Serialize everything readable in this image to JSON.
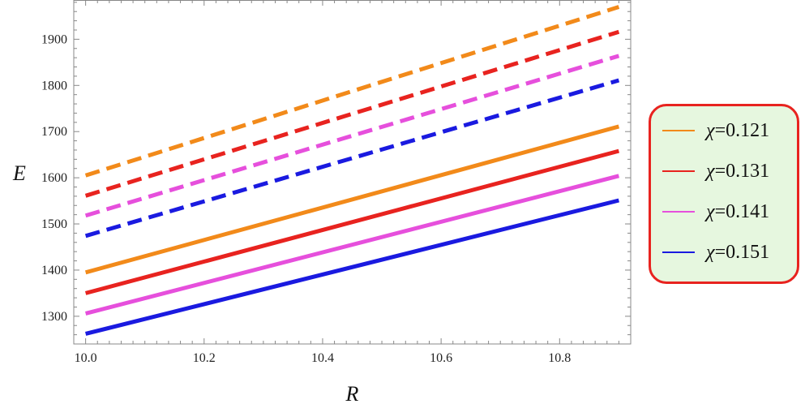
{
  "chart_data": {
    "type": "line",
    "title": "",
    "xlabel": "R",
    "ylabel": "E",
    "xlim": [
      9.98,
      10.92
    ],
    "ylim": [
      1240,
      1985
    ],
    "xticks": [
      10.0,
      10.2,
      10.4,
      10.6,
      10.8
    ],
    "xtick_labels": [
      "10.0",
      "10.2",
      "10.4",
      "10.6",
      "10.8"
    ],
    "yticks": [
      1300,
      1400,
      1500,
      1600,
      1700,
      1800,
      1900
    ],
    "ytick_labels": [
      "1300",
      "1400",
      "1500",
      "1600",
      "1700",
      "1800",
      "1900"
    ],
    "grid": false,
    "legend_position": "right",
    "legend": [
      {
        "symbol": "χ",
        "text": "=0.121",
        "color": "#f28a1a"
      },
      {
        "symbol": "χ",
        "text": "=0.131",
        "color": "#e8231f"
      },
      {
        "symbol": "χ",
        "text": "=0.141",
        "color": "#e64fdc"
      },
      {
        "symbol": "χ",
        "text": "=0.151",
        "color": "#1a1ae0"
      }
    ],
    "series": [
      {
        "chi": 0.121,
        "style": "dashed",
        "color": "#f28a1a",
        "x": [
          10.0,
          10.9
        ],
        "y": [
          1605,
          1970
        ]
      },
      {
        "chi": 0.131,
        "style": "dashed",
        "color": "#e8231f",
        "x": [
          10.0,
          10.9
        ],
        "y": [
          1561,
          1916
        ]
      },
      {
        "chi": 0.141,
        "style": "dashed",
        "color": "#e64fdc",
        "x": [
          10.0,
          10.9
        ],
        "y": [
          1518,
          1864
        ]
      },
      {
        "chi": 0.151,
        "style": "dashed",
        "color": "#1a1ae0",
        "x": [
          10.0,
          10.9
        ],
        "y": [
          1474,
          1811
        ]
      },
      {
        "chi": 0.121,
        "style": "solid",
        "color": "#f28a1a",
        "x": [
          10.0,
          10.9
        ],
        "y": [
          1395,
          1711
        ]
      },
      {
        "chi": 0.131,
        "style": "solid",
        "color": "#e8231f",
        "x": [
          10.0,
          10.9
        ],
        "y": [
          1350,
          1658
        ]
      },
      {
        "chi": 0.141,
        "style": "solid",
        "color": "#e64fdc",
        "x": [
          10.0,
          10.9
        ],
        "y": [
          1306,
          1604
        ]
      },
      {
        "chi": 0.151,
        "style": "solid",
        "color": "#1a1ae0",
        "x": [
          10.0,
          10.9
        ],
        "y": [
          1262,
          1551
        ]
      }
    ]
  }
}
